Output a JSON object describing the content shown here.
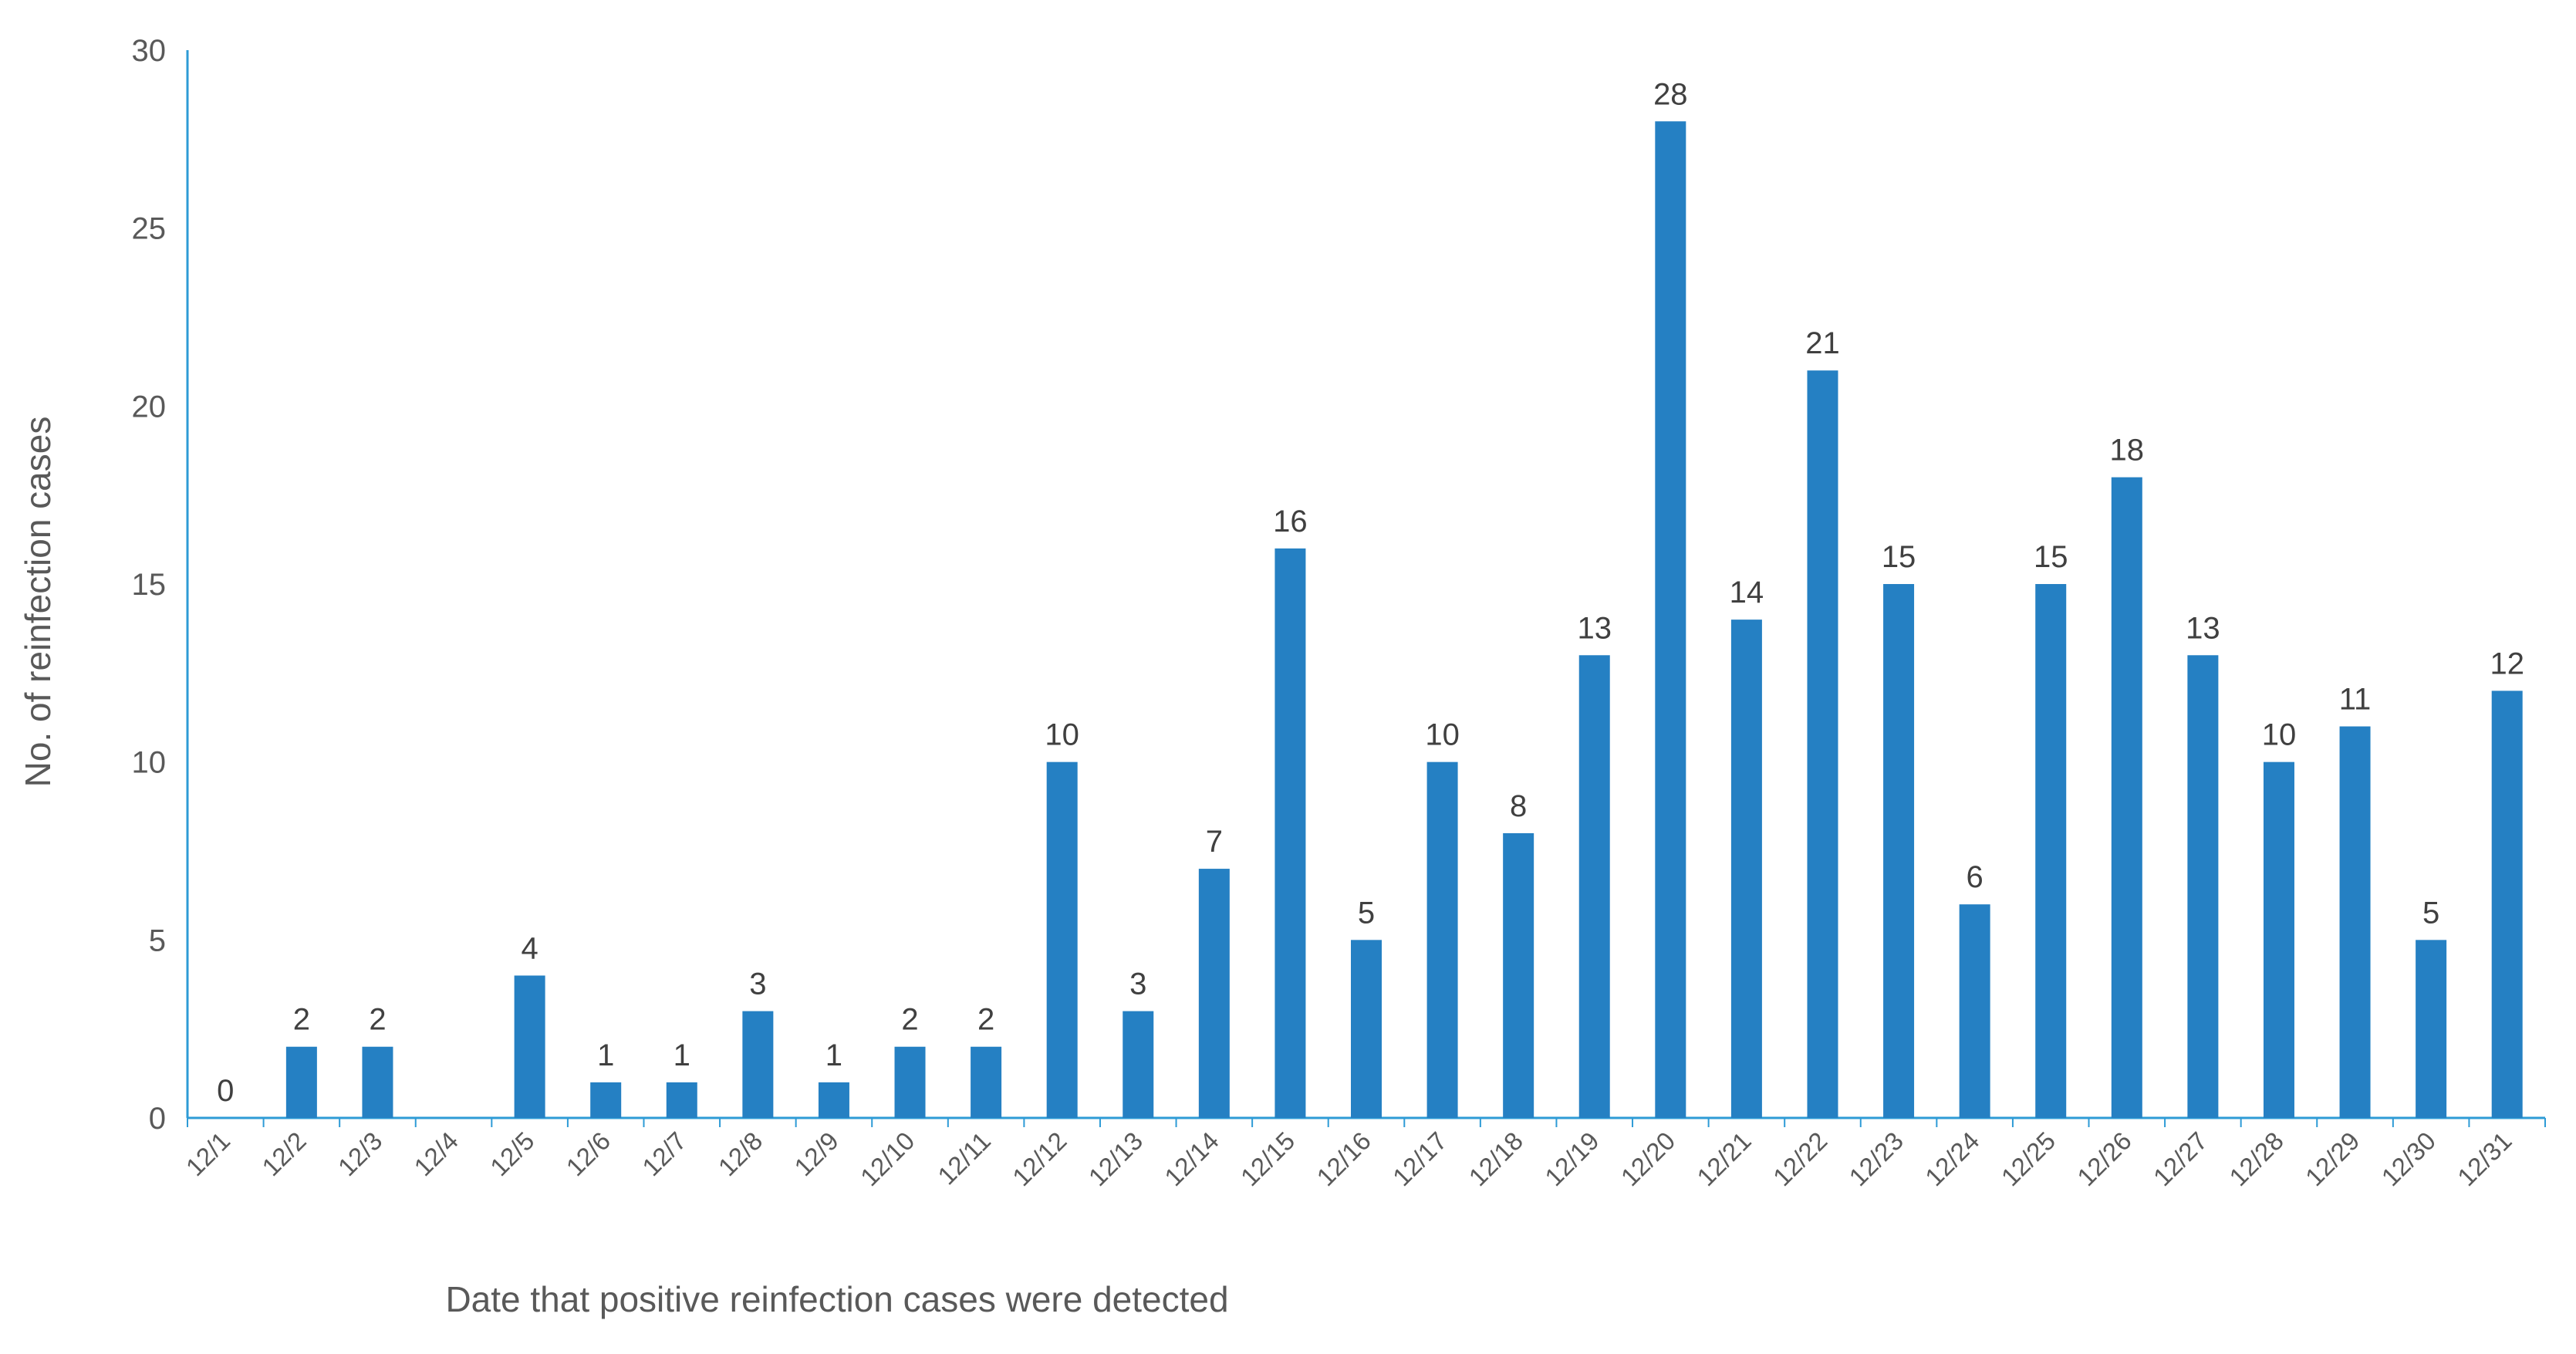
{
  "chart_data": {
    "type": "bar",
    "title": "",
    "xlabel": "Date that positive reinfection cases were detected",
    "ylabel": "No. of reinfection cases",
    "ylim": [
      0,
      30
    ],
    "yticks": [
      0,
      5,
      10,
      15,
      20,
      25,
      30
    ],
    "grid": false,
    "categories": [
      "12/1",
      "12/2",
      "12/3",
      "12/4",
      "12/5",
      "12/6",
      "12/7",
      "12/8",
      "12/9",
      "12/10",
      "12/11",
      "12/12",
      "12/13",
      "12/14",
      "12/15",
      "12/16",
      "12/17",
      "12/18",
      "12/19",
      "12/20",
      "12/21",
      "12/22",
      "12/23",
      "12/24",
      "12/25",
      "12/26",
      "12/27",
      "12/28",
      "12/29",
      "12/30",
      "12/31"
    ],
    "values": [
      0,
      2,
      2,
      null,
      4,
      1,
      1,
      3,
      1,
      2,
      2,
      10,
      3,
      7,
      16,
      5,
      10,
      8,
      13,
      28,
      14,
      21,
      15,
      6,
      15,
      18,
      13,
      10,
      11,
      5,
      12
    ],
    "colors": {
      "bar": "#2580C3",
      "axis": "#2E9BD6"
    }
  }
}
